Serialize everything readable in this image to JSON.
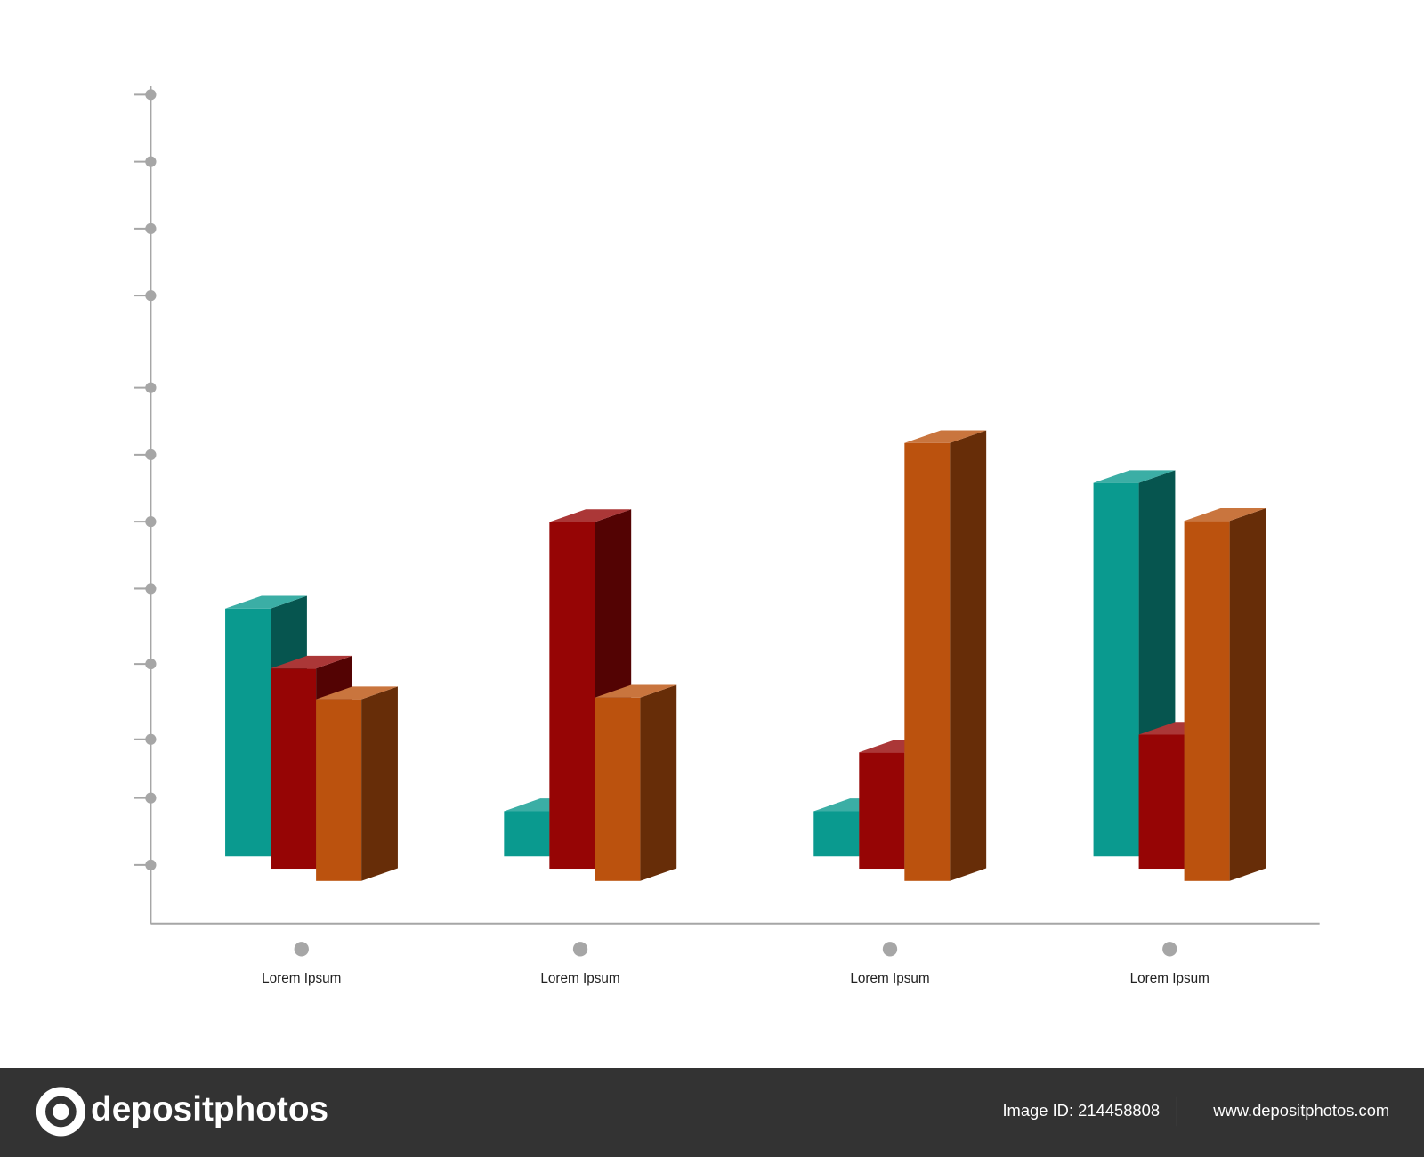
{
  "chart_data": {
    "type": "bar3d",
    "categories": [
      "Lorem Ipsum",
      "Lorem Ipsum",
      "Lorem Ipsum",
      "Lorem Ipsum"
    ],
    "series": [
      {
        "color": "#0a9a8f",
        "values": [
          29.6,
          5.4,
          5.4,
          44.6
        ]
      },
      {
        "color": "#960505",
        "values": [
          23.9,
          41.4,
          13.9,
          16
        ]
      },
      {
        "color": "#bb520e",
        "values": [
          21.7,
          21.9,
          52.3,
          43
        ]
      }
    ],
    "ylim": [
      0,
      100
    ],
    "yticks": [
      7,
      15,
      22,
      31,
      40,
      48,
      56,
      64,
      75,
      83,
      91,
      99
    ]
  },
  "footer": {
    "brand": "depositphotos",
    "image_id": "Image ID: 214458808",
    "site": "www.depositphotos.com"
  }
}
